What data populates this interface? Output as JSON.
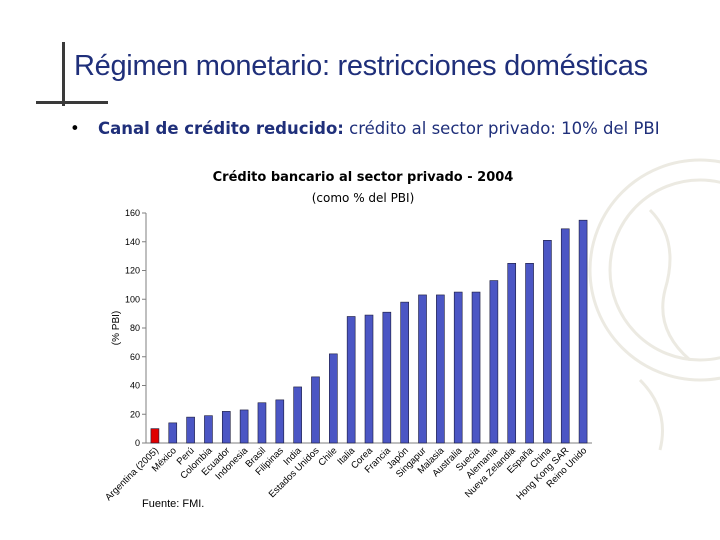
{
  "slide": {
    "title": "Régimen monetario: restricciones domésticas",
    "bullet_marker": "•",
    "bullet_bold": "Canal de crédito reducido:",
    "bullet_text": " crédito al sector privado: 10% del PBI"
  },
  "colors": {
    "title": "#1f2f7a",
    "bar_default": "#4b56c4",
    "bar_highlight": "#e00000",
    "axis": "#7f7f7f"
  },
  "chart_data": {
    "type": "bar",
    "title": "Crédito bancario al sector privado - 2004",
    "subtitle": "(como % del PBI)",
    "ylabel": "(% PBI)",
    "xlabel": "",
    "ylim": [
      0,
      160
    ],
    "yticks": [
      0,
      20,
      40,
      60,
      80,
      100,
      120,
      140,
      160
    ],
    "grid": false,
    "legend": "none",
    "highlight_category": "Argentina (2005)",
    "categories": [
      "Argentina (2005)",
      "México",
      "Perú",
      "Colombia",
      "Ecuador",
      "Indonesia",
      "Brasil",
      "Filipinas",
      "India",
      "Estados Unidos",
      "Chile",
      "Italia",
      "Corea",
      "Francia",
      "Japón",
      "Singapur",
      "Malasia",
      "Australia",
      "Suecia",
      "Alemania",
      "Nueva Zelandia",
      "España",
      "China",
      "Hong Kong SAR",
      "Reino Unido"
    ],
    "values": [
      10,
      14,
      18,
      19,
      22,
      23,
      28,
      30,
      39,
      46,
      62,
      88,
      89,
      91,
      98,
      103,
      103,
      105,
      105,
      113,
      125,
      125,
      141,
      149,
      155
    ],
    "source": "Fuente: FMI."
  }
}
